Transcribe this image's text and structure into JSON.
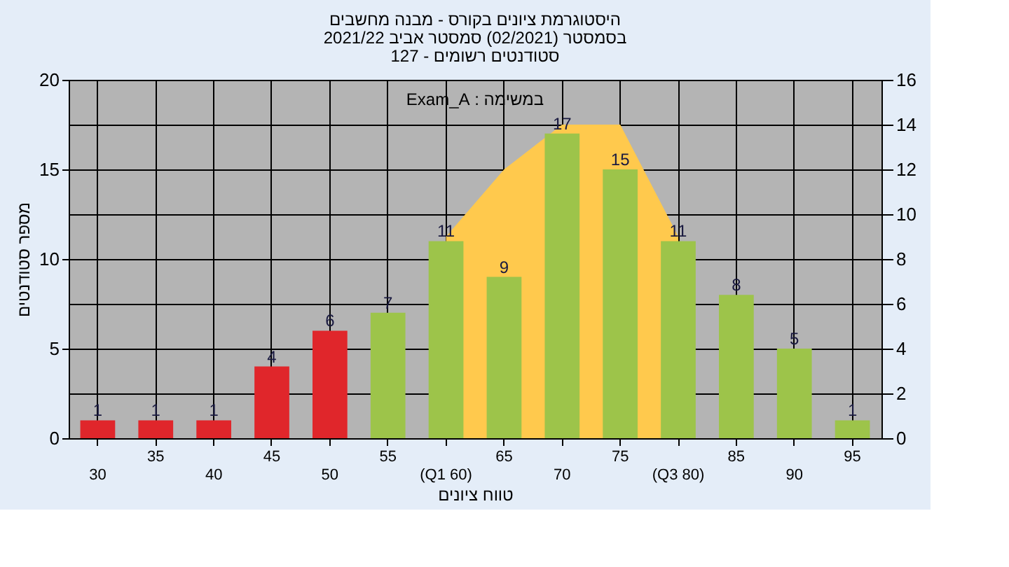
{
  "chart_data": {
    "type": "bar",
    "title": [
      "היסטוגרמת ציונים בקורס - מבנה מחשבים",
      "בסמסטר  (02/2021)  סמסטר אביב 2021/22",
      "סטודנטים רשומים - 127"
    ],
    "xlabel": "טווח ציונים",
    "ylabel": "מספר סטודנטים",
    "annotations": [
      "במשימה : Exam_A"
    ],
    "categories": [
      "30",
      "35",
      "40",
      "45",
      "50",
      "55",
      "(Q1 60)",
      "65",
      "70",
      "75",
      "(Q3 80)",
      "85",
      "90",
      "95"
    ],
    "series": [
      {
        "type": "area",
        "axis": "y2",
        "color": "#ffc94d",
        "values": [
          null,
          null,
          null,
          null,
          null,
          null,
          9,
          12,
          14,
          14,
          9,
          null,
          null,
          null
        ]
      },
      {
        "colors": [
          "#e0262b",
          "#e0262b",
          "#e0262b",
          "#e0262b",
          "#e0262b",
          "#9dc44a",
          "#9dc44a",
          "#9dc44a",
          "#9dc44a",
          "#9dc44a",
          "#9dc44a",
          "#9dc44a",
          "#9dc44a",
          "#9dc44a"
        ],
        "values": [
          1,
          1,
          1,
          4,
          6,
          7,
          11,
          9,
          17,
          15,
          11,
          8,
          5,
          1
        ],
        "value_labels": [
          "1",
          "1",
          "1",
          "4",
          "6",
          "7",
          "11",
          "9",
          "17",
          "15",
          "11",
          "8",
          "5",
          "1"
        ]
      }
    ],
    "ylim": [
      0,
      20
    ],
    "yticks": [
      0,
      5,
      10,
      15,
      20
    ],
    "y2lim": [
      0,
      16
    ],
    "y2ticks": [
      0,
      2,
      4,
      6,
      8,
      10,
      12,
      14,
      16
    ],
    "grid": true
  }
}
